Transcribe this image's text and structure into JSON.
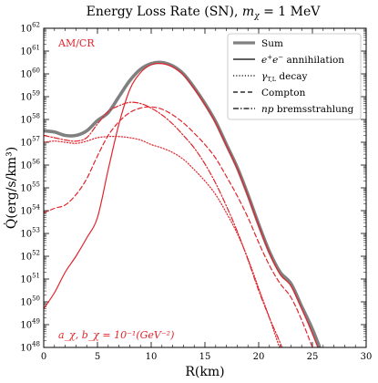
{
  "chart_data": {
    "type": "line",
    "title": "Energy Loss Rate (SN), m_χ = 1 MeV",
    "title_parts": {
      "main": "Energy Loss Rate (SN), ",
      "m": "m",
      "chi": "χ",
      "rest": " = 1 MeV"
    },
    "xlabel": "R(km)",
    "ylabel": "Q̇(erg/s/km³)",
    "xlim": [
      0,
      30
    ],
    "ylim": [
      48,
      62
    ],
    "yscale": "log10",
    "x_ticks": [
      0,
      5,
      10,
      15,
      20,
      25,
      30
    ],
    "x_tick_labels": [
      "0",
      "5",
      "10",
      "15",
      "20",
      "25",
      "30"
    ],
    "y_ticks": [
      48,
      49,
      50,
      51,
      52,
      53,
      54,
      55,
      56,
      57,
      58,
      59,
      60,
      61,
      62
    ],
    "y_tick_base": "10",
    "y_tick_exponents": [
      "48",
      "49",
      "50",
      "51",
      "52",
      "53",
      "54",
      "55",
      "56",
      "57",
      "58",
      "59",
      "60",
      "61",
      "62"
    ],
    "grid": false,
    "legend_position": "top-right",
    "annotation_top_left": "AM/CR",
    "annotation_bottom_left": "a_χ, b_χ = 10⁻¹(GeV⁻²)",
    "accent_color": "#e0242b",
    "sum_color": "#808080",
    "series": [
      {
        "name": "Sum",
        "style": "thick-gray",
        "x": [
          0,
          1,
          2,
          3,
          4,
          5,
          6,
          7,
          8,
          9,
          10,
          11,
          12,
          13,
          14,
          15,
          16,
          17,
          18,
          19,
          20,
          21,
          22,
          23,
          24,
          25,
          26
        ],
        "y": [
          57.5,
          57.45,
          57.3,
          57.3,
          57.5,
          57.95,
          58.3,
          59.0,
          59.7,
          60.2,
          60.45,
          60.5,
          60.35,
          60.0,
          59.4,
          58.7,
          57.9,
          56.9,
          55.9,
          54.7,
          53.4,
          52.2,
          51.3,
          50.8,
          49.8,
          48.8,
          47.6
        ]
      },
      {
        "name": "e⁺e⁻ annihilation",
        "style": "solid",
        "x": [
          0,
          1,
          2,
          3,
          4,
          5,
          6,
          7,
          8,
          9,
          10,
          11,
          12,
          13,
          14,
          15,
          16,
          17,
          18,
          19,
          20,
          21,
          22,
          23,
          24,
          25,
          26
        ],
        "y": [
          49.7,
          50.4,
          51.3,
          52.0,
          52.8,
          53.7,
          55.8,
          57.8,
          59.3,
          60.05,
          60.4,
          60.45,
          60.3,
          59.95,
          59.35,
          58.65,
          57.85,
          56.85,
          55.85,
          54.65,
          53.35,
          52.15,
          51.2,
          50.7,
          49.7,
          48.6,
          47.4
        ]
      },
      {
        "name": "γ_T,L decay",
        "style": "dotted",
        "x": [
          0,
          1,
          2,
          3,
          4,
          5,
          6,
          7,
          8,
          9,
          10,
          11,
          12,
          13,
          14,
          15,
          16,
          17,
          18,
          19,
          20,
          21,
          22
        ],
        "y": [
          57.0,
          57.05,
          57.0,
          56.95,
          57.05,
          57.2,
          57.25,
          57.25,
          57.2,
          57.1,
          56.9,
          56.75,
          56.55,
          56.25,
          55.8,
          55.3,
          54.7,
          53.9,
          53.0,
          51.9,
          50.6,
          49.3,
          47.9
        ]
      },
      {
        "name": "Compton",
        "style": "dashed",
        "x": [
          0,
          1,
          2,
          3,
          4,
          5,
          6,
          7,
          8,
          9,
          10,
          11,
          12,
          13,
          14,
          15,
          16,
          17,
          18,
          19,
          20,
          21,
          22,
          23,
          24,
          25
        ],
        "y": [
          53.9,
          54.1,
          54.25,
          54.7,
          55.4,
          56.4,
          57.3,
          57.9,
          58.3,
          58.5,
          58.55,
          58.45,
          58.2,
          57.85,
          57.4,
          56.9,
          56.3,
          55.5,
          54.65,
          53.7,
          52.6,
          51.6,
          50.8,
          50.2,
          49.2,
          48.0
        ]
      },
      {
        "name": "np bremsstrahlung",
        "style": "dashdot",
        "x": [
          0,
          1,
          2,
          3,
          4,
          5,
          6,
          7,
          8,
          9,
          10,
          11,
          12,
          13,
          14,
          15,
          16,
          17,
          18,
          19,
          20,
          21,
          22,
          23
        ],
        "y": [
          57.3,
          57.2,
          57.1,
          57.05,
          57.2,
          57.8,
          58.35,
          58.6,
          58.75,
          58.7,
          58.5,
          58.2,
          57.8,
          57.3,
          56.75,
          56.05,
          55.2,
          54.2,
          53.1,
          51.85,
          50.5,
          49.3,
          48.2,
          47.0
        ]
      }
    ],
    "legend_labels": {
      "sum": "Sum",
      "annihilation_rest": " annihilation",
      "decay_rest": " decay",
      "compton": "Compton",
      "brems_rest": " bremsstrahlung"
    }
  }
}
